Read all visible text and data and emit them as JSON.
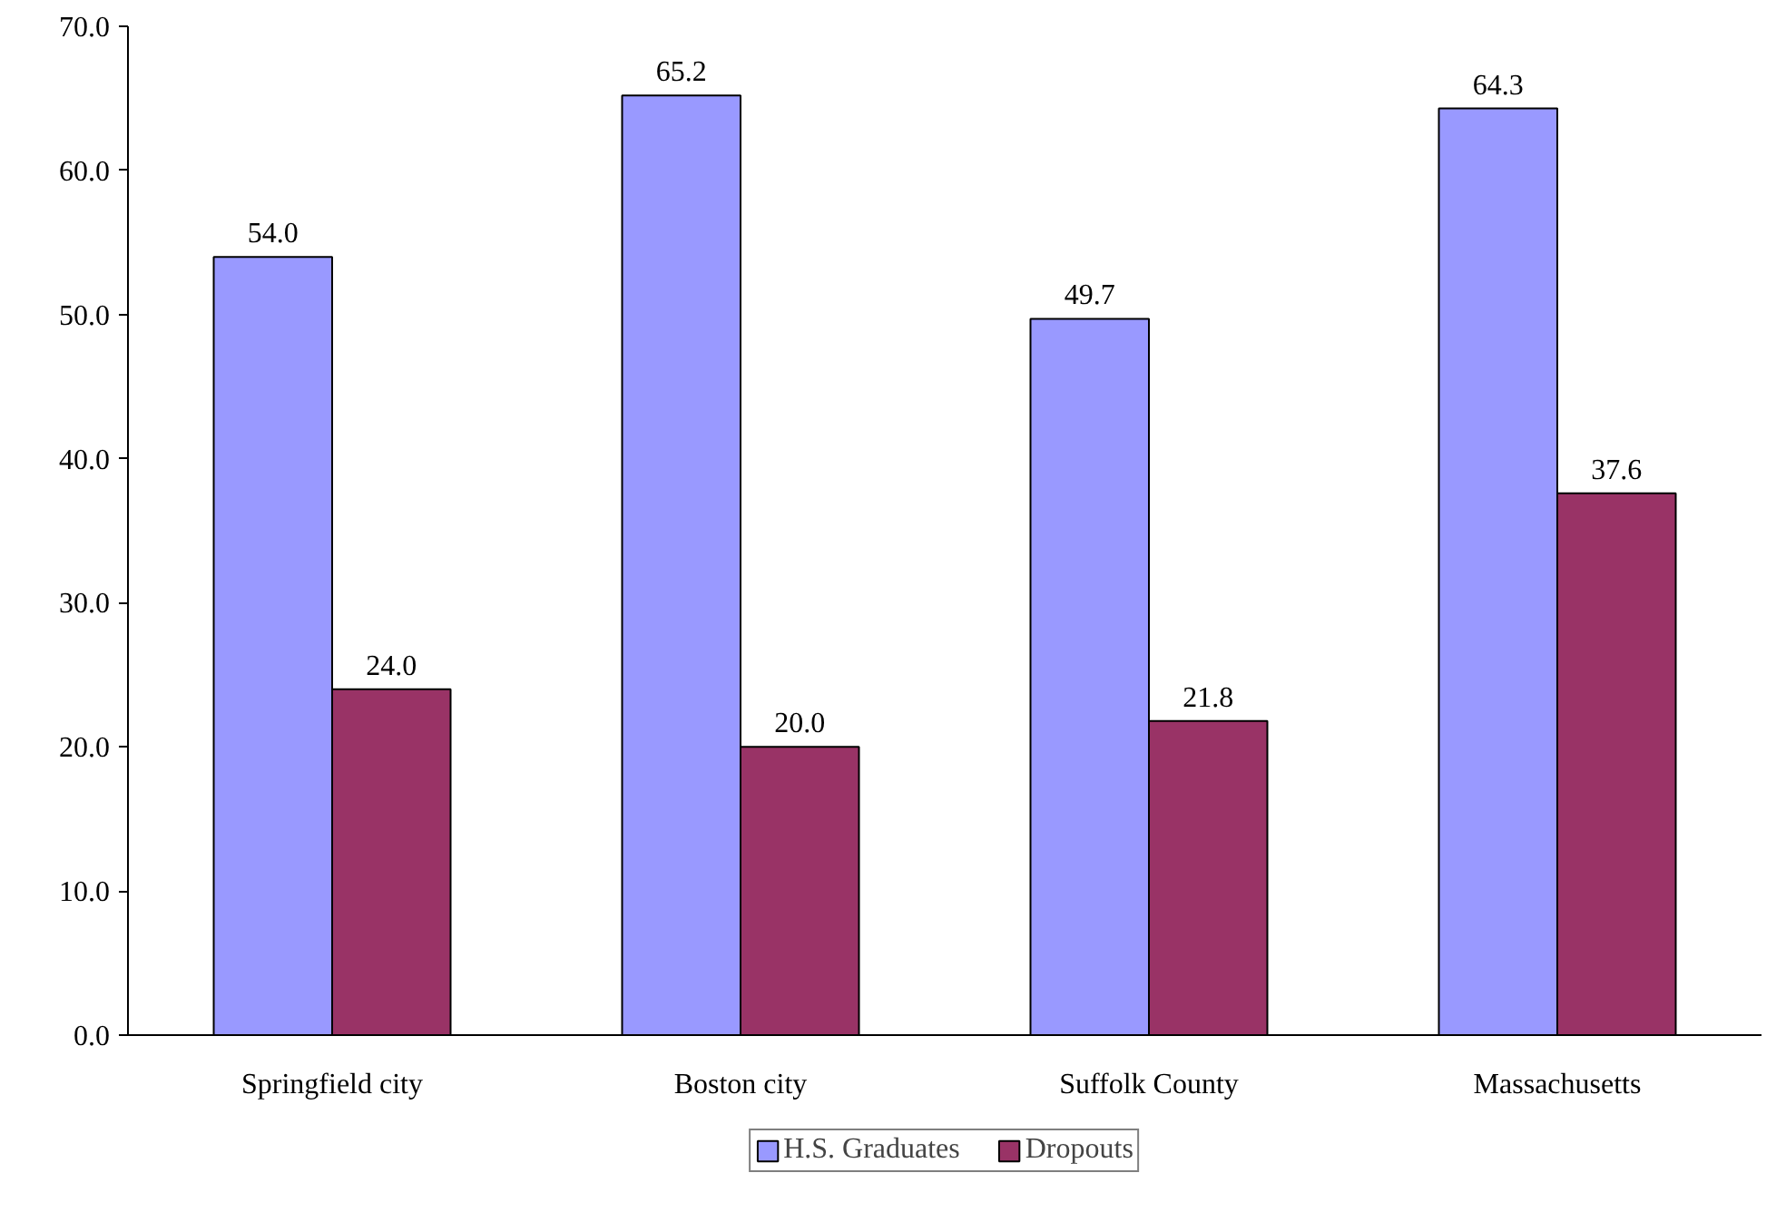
{
  "chart_data": {
    "type": "bar",
    "categories": [
      "Springfield city",
      "Boston city",
      "Suffolk County",
      "Massachusetts"
    ],
    "series": [
      {
        "name": "H.S. Graduates",
        "color": "#9999ff",
        "values": [
          54.0,
          65.2,
          49.7,
          64.3
        ],
        "value_labels": [
          "54.0",
          "65.2",
          "49.7",
          "64.3"
        ]
      },
      {
        "name": "Dropouts",
        "color": "#993366",
        "values": [
          24.0,
          20.0,
          21.8,
          37.6
        ],
        "value_labels": [
          "24.0",
          "20.0",
          "21.8",
          "37.6"
        ]
      }
    ],
    "ylim": [
      0,
      70
    ],
    "yticks": [
      {
        "value": 0,
        "label": "0.0"
      },
      {
        "value": 10,
        "label": "10.0"
      },
      {
        "value": 20,
        "label": "20.0"
      },
      {
        "value": 30,
        "label": "30.0"
      },
      {
        "value": 40,
        "label": "40.0"
      },
      {
        "value": 50,
        "label": "50.0"
      },
      {
        "value": 60,
        "label": "60.0"
      },
      {
        "value": 70,
        "label": "70.0"
      }
    ],
    "grid": false,
    "legend": "bottom"
  }
}
